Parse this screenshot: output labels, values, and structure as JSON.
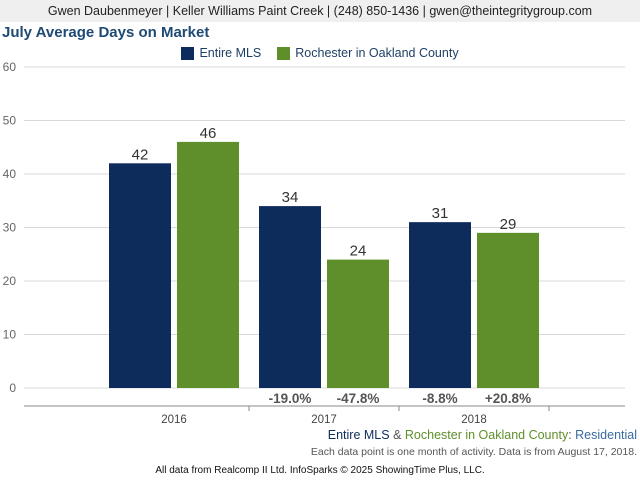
{
  "header": {
    "contact": "Gwen Daubenmeyer | Keller Williams Paint Creek | (248) 850-1436 | gwen@theintegritygroup.com"
  },
  "colors": {
    "entire": "#0d2c5c",
    "local": "#5f8f2a",
    "title": "#1e4a73"
  },
  "chart_data": {
    "type": "bar",
    "title": "July Average Days on Market",
    "categories": [
      "2016",
      "2017",
      "2018"
    ],
    "ylim": [
      0,
      60
    ],
    "yticks": [
      0,
      10,
      20,
      30,
      40,
      50,
      60
    ],
    "grid": true,
    "legend_position": "top-center",
    "series": [
      {
        "name": "Entire MLS",
        "values": [
          42,
          34,
          31
        ],
        "changes": [
          "",
          "-19.0%",
          "-8.8%"
        ]
      },
      {
        "name": "Rochester in Oakland County",
        "values": [
          46,
          24,
          29
        ],
        "changes": [
          "",
          "-47.8%",
          "+20.8%"
        ]
      }
    ]
  },
  "footer": {
    "entire_label": "Entire MLS",
    "amp": "&",
    "local_label": "Rochester in Oakland County",
    "colon": ":",
    "segment": "Residential",
    "note": "Each data point is one month of activity. Data is from August 17, 2018.",
    "credit": "All data from Realcomp II Ltd. InfoSparks © 2025 ShowingTime Plus, LLC."
  }
}
